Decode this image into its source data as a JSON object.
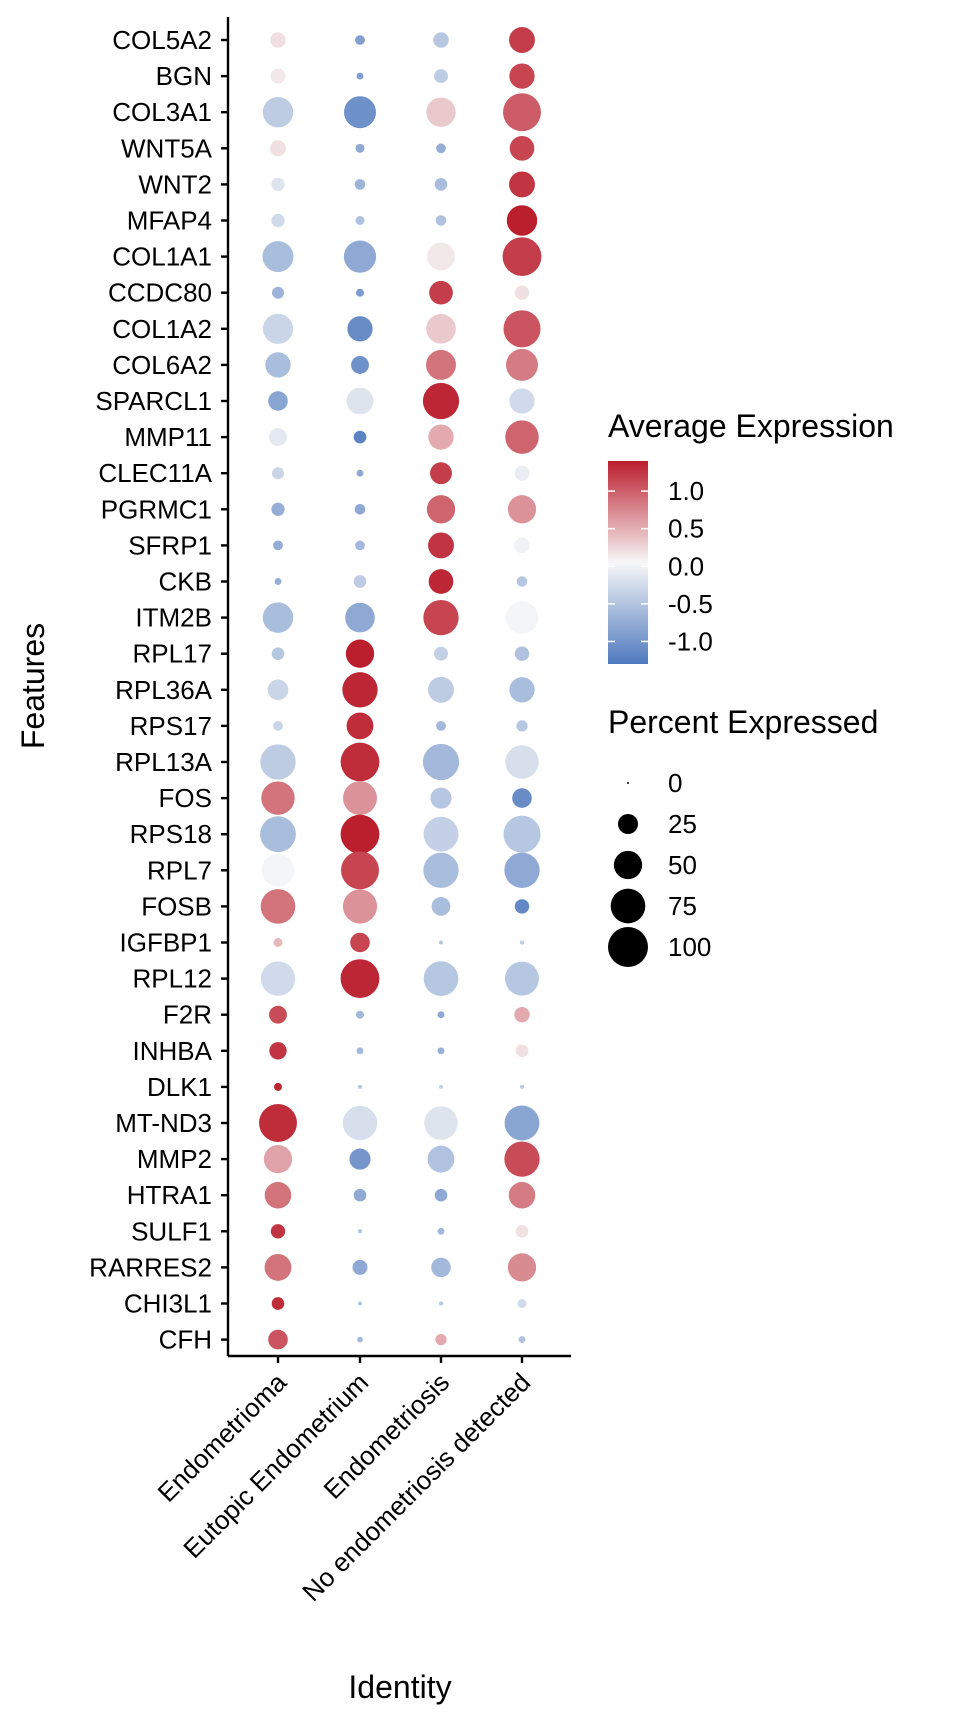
{
  "chart_data": {
    "type": "scatter",
    "chart_kind": "dot-plot",
    "xlabel": "Identity",
    "ylabel": "Features",
    "categories": [
      "Endometrioma",
      "Eutopic Endometrium",
      "Endometriosis",
      "No endometriosis detected"
    ],
    "features": [
      "COL5A2",
      "BGN",
      "COL3A1",
      "WNT5A",
      "WNT2",
      "MFAP4",
      "COL1A1",
      "CCDC80",
      "COL1A2",
      "COL6A2",
      "SPARCL1",
      "MMP11",
      "CLEC11A",
      "PGRMC1",
      "SFRP1",
      "CKB",
      "ITM2B",
      "RPL17",
      "RPL36A",
      "RPS17",
      "RPL13A",
      "FOS",
      "RPS18",
      "RPL7",
      "FOSB",
      "IGFBP1",
      "RPL12",
      "F2R",
      "INHBA",
      "DLK1",
      "MT-ND3",
      "MMP2",
      "HTRA1",
      "SULF1",
      "RARRES2",
      "CHI3L1",
      "CFH"
    ],
    "avg_expression": [
      [
        0.15,
        -0.9,
        -0.5,
        1.2
      ],
      [
        0.1,
        -0.9,
        -0.45,
        1.15
      ],
      [
        -0.45,
        -1.05,
        0.3,
        1.0
      ],
      [
        0.15,
        -0.8,
        -0.75,
        1.15
      ],
      [
        -0.2,
        -0.7,
        -0.6,
        1.25
      ],
      [
        -0.3,
        -0.55,
        -0.55,
        1.4
      ],
      [
        -0.6,
        -0.8,
        0.1,
        1.2
      ],
      [
        -0.7,
        -0.95,
        1.2,
        0.15
      ],
      [
        -0.35,
        -1.1,
        0.3,
        1.05
      ],
      [
        -0.6,
        -1.05,
        0.85,
        0.8
      ],
      [
        -0.85,
        -0.2,
        1.35,
        -0.3
      ],
      [
        -0.15,
        -1.2,
        0.5,
        0.95
      ],
      [
        -0.35,
        -0.8,
        1.2,
        -0.1
      ],
      [
        -0.75,
        -0.8,
        0.95,
        0.65
      ],
      [
        -0.75,
        -0.65,
        1.25,
        -0.05
      ],
      [
        -0.75,
        -0.45,
        1.35,
        -0.5
      ],
      [
        -0.6,
        -0.8,
        1.15,
        -0.02
      ],
      [
        -0.5,
        1.4,
        -0.4,
        -0.55
      ],
      [
        -0.35,
        1.35,
        -0.45,
        -0.6
      ],
      [
        -0.35,
        1.3,
        -0.65,
        -0.5
      ],
      [
        -0.45,
        1.3,
        -0.65,
        -0.25
      ],
      [
        0.85,
        0.65,
        -0.5,
        -1.1
      ],
      [
        -0.6,
        1.4,
        -0.4,
        -0.5
      ],
      [
        -0.02,
        1.15,
        -0.6,
        -0.8
      ],
      [
        0.85,
        0.65,
        -0.6,
        -1.15
      ],
      [
        0.4,
        1.15,
        -0.5,
        -0.45
      ],
      [
        -0.3,
        1.35,
        -0.5,
        -0.5
      ],
      [
        1.1,
        -0.65,
        -0.8,
        0.5
      ],
      [
        1.25,
        -0.65,
        -0.75,
        0.15
      ],
      [
        1.35,
        -0.5,
        -0.4,
        -0.5
      ],
      [
        1.3,
        -0.25,
        -0.2,
        -0.85
      ],
      [
        0.55,
        -1.0,
        -0.55,
        1.1
      ],
      [
        0.85,
        -0.8,
        -0.8,
        0.8
      ],
      [
        1.25,
        -0.55,
        -0.65,
        0.15
      ],
      [
        0.85,
        -0.8,
        -0.65,
        0.7
      ],
      [
        1.3,
        -0.55,
        -0.5,
        -0.3
      ],
      [
        1.05,
        -0.65,
        0.5,
        -0.55
      ]
    ],
    "pct_expressed": [
      [
        15,
        6,
        15,
        42
      ],
      [
        14,
        3,
        12,
        40
      ],
      [
        58,
        64,
        54,
        90
      ],
      [
        16,
        5,
        6,
        38
      ],
      [
        11,
        7,
        10,
        42
      ],
      [
        11,
        5,
        7,
        58
      ],
      [
        60,
        65,
        48,
        94
      ],
      [
        9,
        4,
        35,
        13
      ],
      [
        57,
        40,
        55,
        86
      ],
      [
        40,
        20,
        56,
        64
      ],
      [
        24,
        45,
        82,
        40
      ],
      [
        20,
        10,
        40,
        70
      ],
      [
        9,
        3,
        30,
        14
      ],
      [
        11,
        7,
        50,
        50
      ],
      [
        6,
        6,
        42,
        15
      ],
      [
        3,
        10,
        38,
        7
      ],
      [
        58,
        55,
        78,
        66
      ],
      [
        10,
        50,
        12,
        13
      ],
      [
        27,
        78,
        42,
        40
      ],
      [
        6,
        45,
        6,
        8
      ],
      [
        78,
        94,
        82,
        70
      ],
      [
        70,
        72,
        28,
        24
      ],
      [
        80,
        94,
        76,
        86
      ],
      [
        66,
        90,
        78,
        78
      ],
      [
        75,
        73,
        22,
        13
      ],
      [
        5,
        24,
        1,
        1
      ],
      [
        74,
        94,
        75,
        72
      ],
      [
        20,
        4,
        3,
        15
      ],
      [
        19,
        3,
        3,
        10
      ],
      [
        4,
        1,
        1,
        1
      ],
      [
        90,
        74,
        70,
        76
      ],
      [
        50,
        28,
        45,
        78
      ],
      [
        44,
        10,
        10,
        44
      ],
      [
        13,
        1,
        3,
        10
      ],
      [
        45,
        14,
        24,
        50
      ],
      [
        10,
        1,
        1,
        5
      ],
      [
        24,
        2,
        8,
        3
      ]
    ],
    "color_scale": {
      "title": "Average Expression",
      "low_color": "#4F79BE",
      "mid_color": "#F7F7F7",
      "high_color": "#BB1E2D",
      "range": [
        -1.3,
        1.4
      ],
      "ticks": [
        1.0,
        0.5,
        0.0,
        -0.5,
        -1.0
      ],
      "tick_labels": [
        "1.0",
        "0.5",
        "0.0",
        "-0.5",
        "-1.0"
      ]
    },
    "size_scale": {
      "title": "Percent Expressed",
      "range": [
        0,
        100
      ],
      "values": [
        0,
        25,
        50,
        75,
        100
      ],
      "labels": [
        "0",
        "25",
        "50",
        "75",
        "100"
      ]
    },
    "grid": false,
    "legend_position": "right"
  }
}
